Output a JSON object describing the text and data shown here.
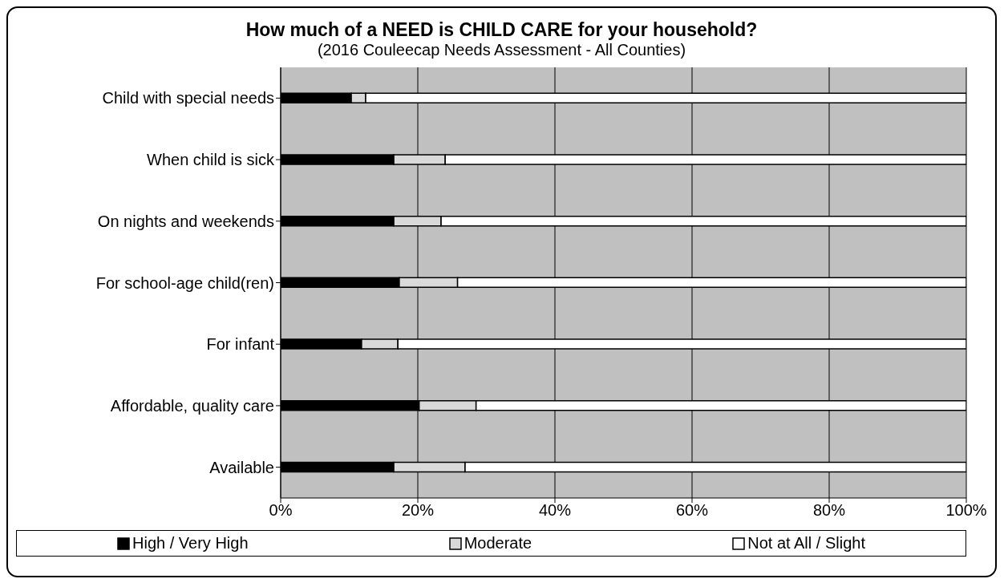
{
  "chart_data": {
    "type": "bar",
    "orientation": "horizontal",
    "stacked": true,
    "title": "How much of a NEED is CHILD CARE for your household?",
    "subtitle": "(2016 Couleecap Needs Assessment - All Counties)",
    "categories": [
      "Child with special needs",
      "When child is sick",
      "On nights and weekends",
      "For school-age child(ren)",
      "For infant",
      "Affordable, quality care",
      "Available"
    ],
    "series": [
      {
        "name": "High / Very High",
        "color": "#000000",
        "values": [
          10.3,
          16.5,
          16.5,
          17.3,
          11.8,
          20.2,
          16.5
        ]
      },
      {
        "name": "Moderate",
        "color": "#d9d9d9",
        "values": [
          2.1,
          7.5,
          6.9,
          8.5,
          5.3,
          8.3,
          10.4
        ]
      },
      {
        "name": "Not at All / Slight",
        "color": "#ffffff",
        "values": [
          87.6,
          76.0,
          76.6,
          74.2,
          82.9,
          71.5,
          73.1
        ]
      }
    ],
    "xlim": [
      0,
      100
    ],
    "xticks": [
      {
        "value": 0,
        "label": "0%"
      },
      {
        "value": 20,
        "label": "20%"
      },
      {
        "value": 40,
        "label": "40%"
      },
      {
        "value": 60,
        "label": "60%"
      },
      {
        "value": 80,
        "label": "80%"
      },
      {
        "value": 100,
        "label": "100%"
      }
    ],
    "grid": "x",
    "legend": "bottom"
  }
}
